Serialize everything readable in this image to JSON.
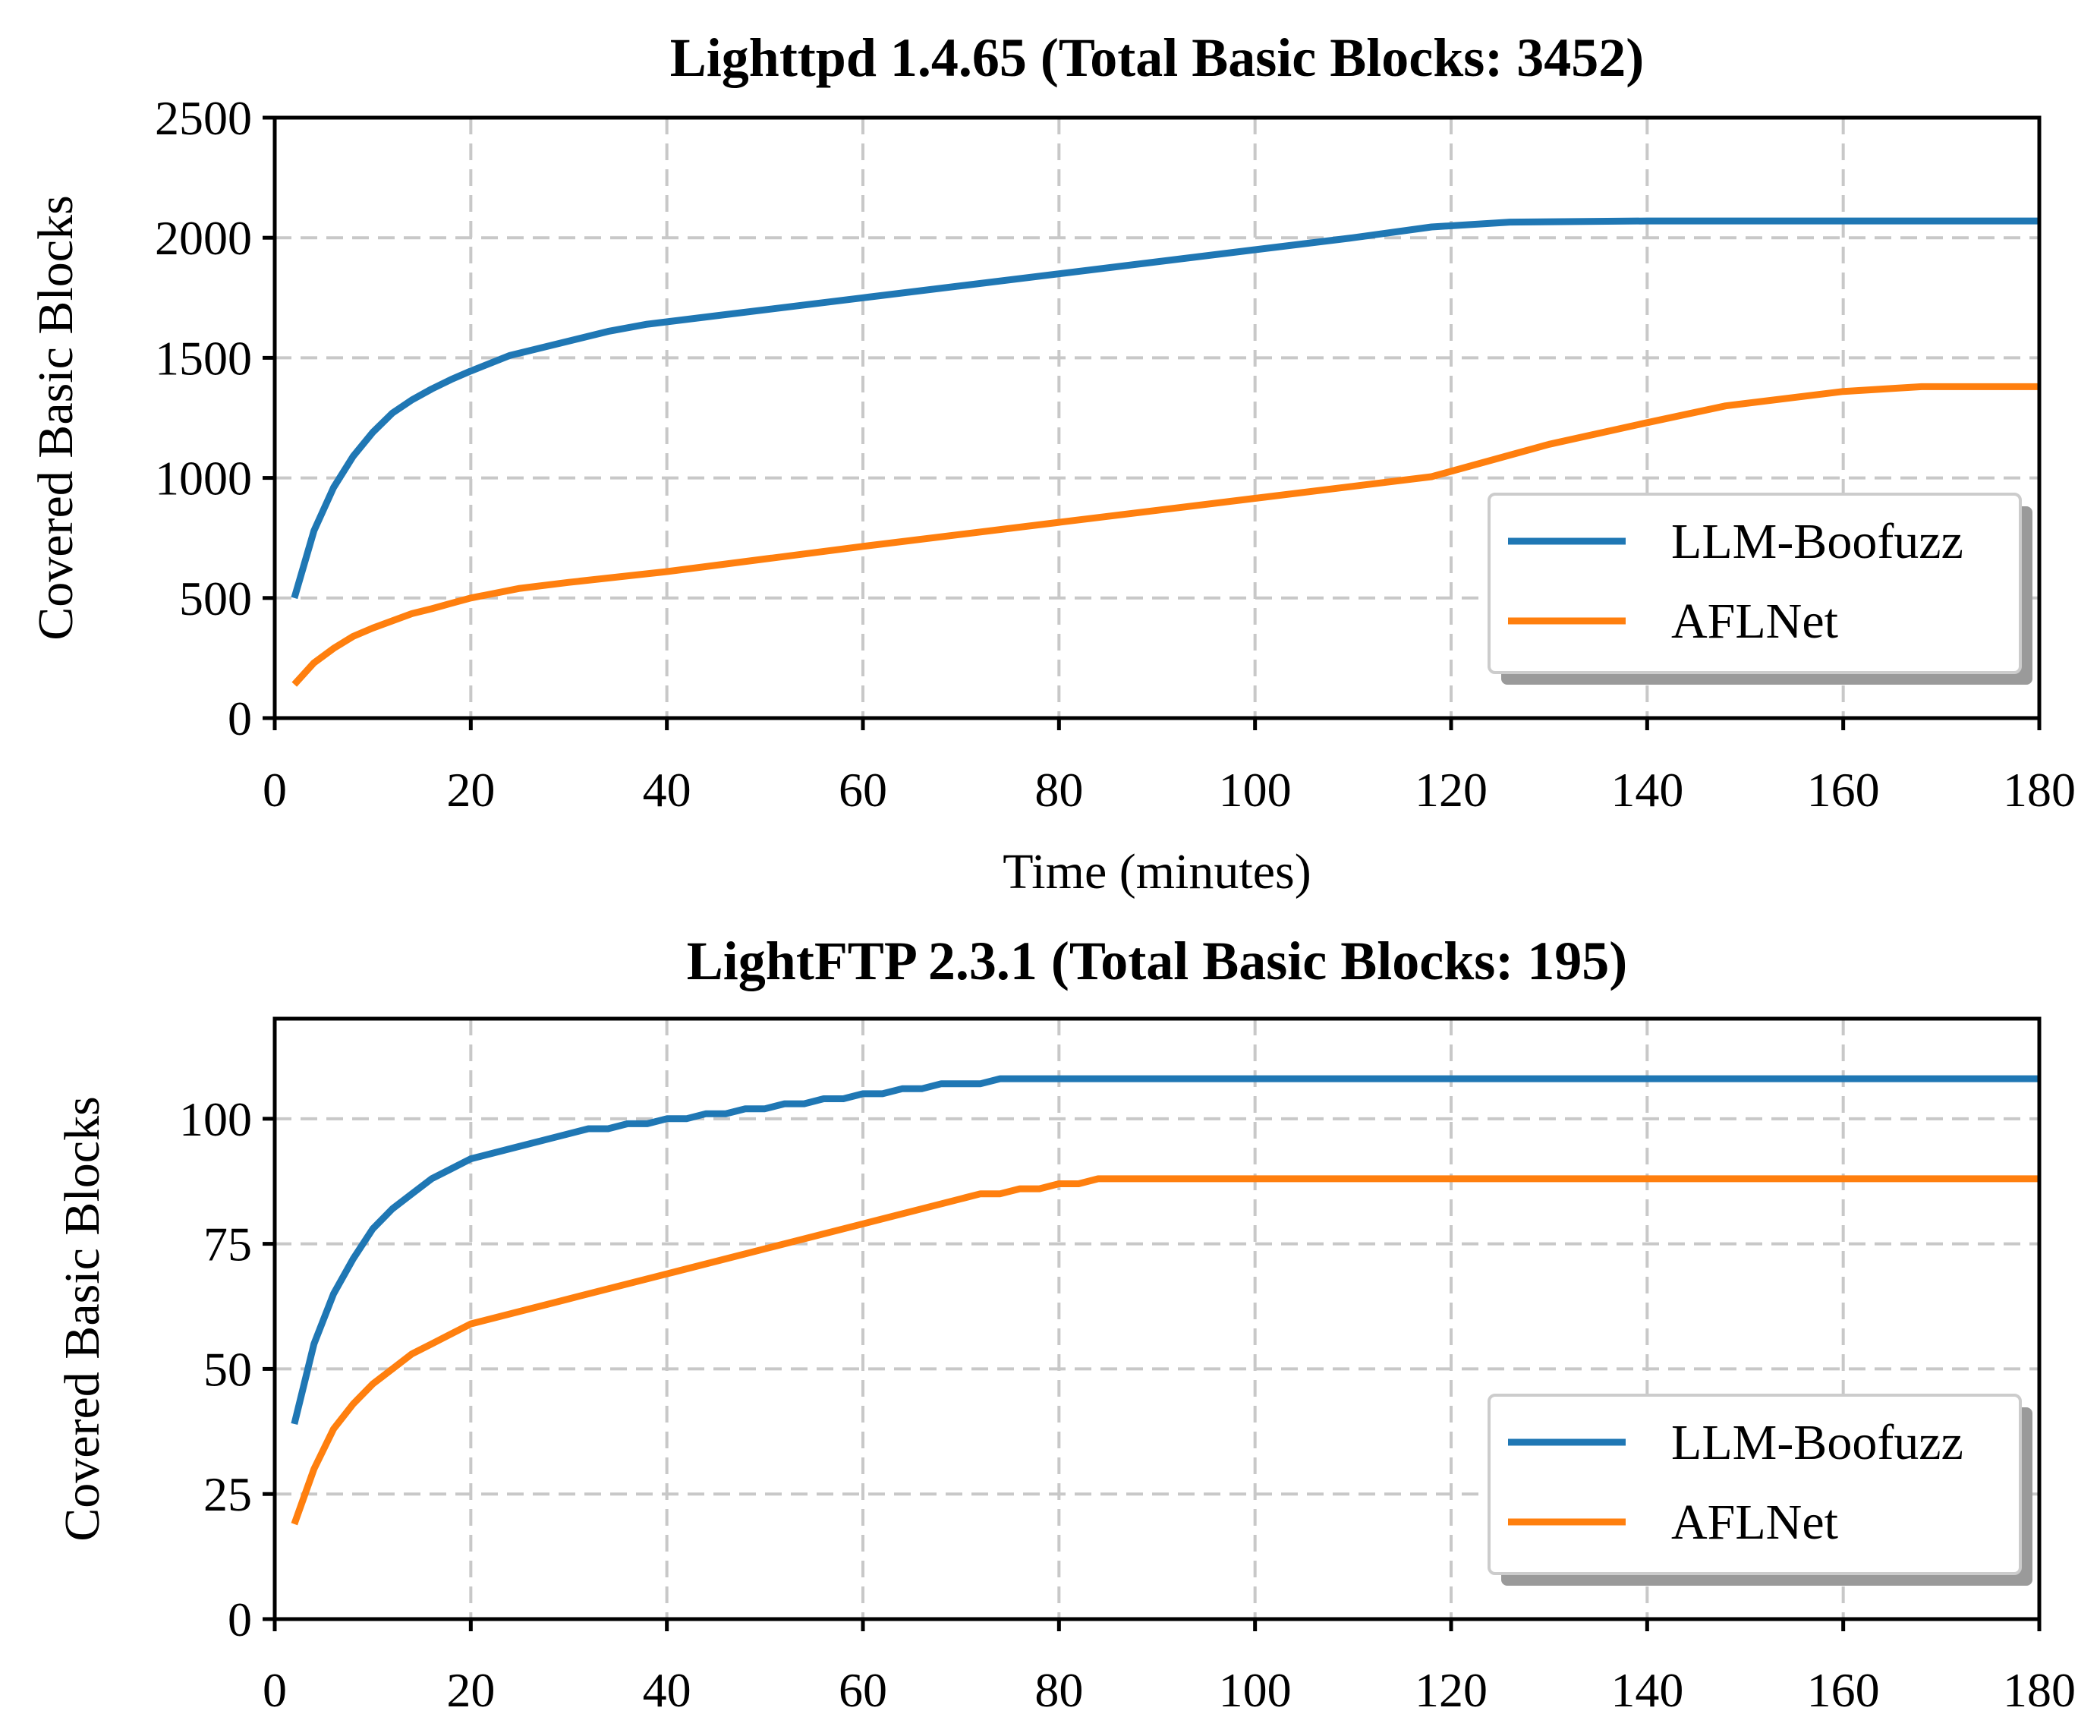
{
  "chart_data": [
    {
      "type": "line",
      "title": "Lighttpd 1.4.65 (Total Basic Blocks: 3452)",
      "xlabel": "Time (minutes)",
      "ylabel": "Covered Basic Blocks",
      "xlim": [
        0,
        180
      ],
      "ylim": [
        0,
        2500
      ],
      "xticks": [
        0,
        20,
        40,
        60,
        80,
        100,
        120,
        140,
        160,
        180
      ],
      "yticks": [
        0,
        500,
        1000,
        1500,
        2000,
        2500
      ],
      "grid": true,
      "legend_position": "lower-right",
      "series": [
        {
          "name": "LLM-Boofuzz",
          "color": "#1f77b4",
          "x": [
            2,
            4,
            6,
            8,
            10,
            12,
            14,
            16,
            18,
            20,
            24,
            28,
            34,
            38,
            45,
            60,
            80,
            100,
            110,
            118,
            126,
            140,
            160,
            180
          ],
          "y": [
            500,
            780,
            960,
            1090,
            1190,
            1270,
            1325,
            1370,
            1410,
            1445,
            1510,
            1550,
            1610,
            1640,
            1675,
            1750,
            1850,
            1950,
            2000,
            2045,
            2065,
            2070,
            2070,
            2070
          ]
        },
        {
          "name": "AFLNet",
          "color": "#ff7f0e",
          "x": [
            2,
            4,
            6,
            8,
            10,
            12,
            14,
            16,
            18,
            20,
            25,
            30,
            40,
            60,
            80,
            100,
            118,
            130,
            140,
            148,
            160,
            168,
            180
          ],
          "y": [
            140,
            230,
            290,
            340,
            375,
            405,
            435,
            455,
            478,
            500,
            540,
            565,
            610,
            715,
            815,
            915,
            1005,
            1140,
            1230,
            1300,
            1360,
            1380,
            1380
          ]
        }
      ]
    },
    {
      "type": "line",
      "title": "LightFTP 2.3.1 (Total Basic Blocks: 195)",
      "xlabel": "",
      "ylabel": "Covered Basic Blocks",
      "xlim": [
        0,
        180
      ],
      "ylim": [
        0,
        120
      ],
      "xticks": [
        0,
        20,
        40,
        60,
        80,
        100,
        120,
        140,
        160,
        180
      ],
      "yticks": [
        0,
        25,
        50,
        75,
        100
      ],
      "grid": true,
      "legend_position": "lower-right",
      "series": [
        {
          "name": "LLM-Boofuzz",
          "color": "#1f77b4",
          "x": [
            2,
            4,
            6,
            8,
            10,
            12,
            14,
            16,
            18,
            20,
            24,
            28,
            32,
            34,
            36,
            38,
            40,
            42,
            44,
            46,
            48,
            50,
            52,
            54,
            56,
            58,
            60,
            62,
            64,
            66,
            68,
            70,
            72,
            74,
            80,
            100,
            140,
            180
          ],
          "y": [
            39,
            55,
            65,
            72,
            78,
            82,
            85,
            88,
            90,
            92,
            94,
            96,
            98,
            98,
            99,
            99,
            100,
            100,
            101,
            101,
            102,
            102,
            103,
            103,
            104,
            104,
            105,
            105,
            106,
            106,
            107,
            107,
            107,
            108,
            108,
            108,
            108,
            108
          ]
        },
        {
          "name": "AFLNet",
          "color": "#ff7f0e",
          "x": [
            2,
            4,
            6,
            8,
            10,
            12,
            14,
            16,
            18,
            20,
            30,
            40,
            50,
            60,
            70,
            72,
            74,
            76,
            78,
            80,
            82,
            84,
            100,
            140,
            180
          ],
          "y": [
            19,
            30,
            38,
            43,
            47,
            50,
            53,
            55,
            57,
            59,
            64,
            69,
            74,
            79,
            84,
            85,
            85,
            86,
            86,
            87,
            87,
            88,
            88,
            88,
            88
          ]
        }
      ]
    }
  ]
}
